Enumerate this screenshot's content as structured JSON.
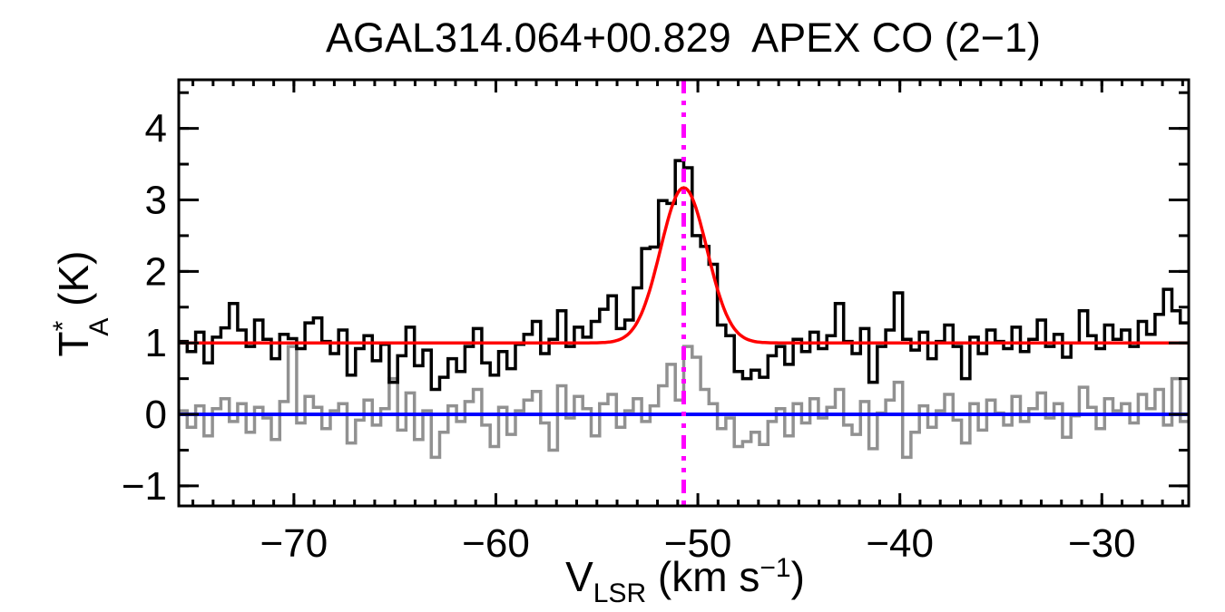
{
  "figure": {
    "background_color": "#ffffff",
    "frame_color": "#000000"
  },
  "chart_data": {
    "type": "line",
    "title": "AGAL314.064+00.829  APEX CO (2−1)",
    "xlabel": {
      "base": "V",
      "sub": "LSR",
      "mid": " (km s",
      "sup": "−1",
      "end": ")"
    },
    "ylabel": {
      "base": "T",
      "sup": "*",
      "sub": "A",
      "end": " (K)"
    },
    "xlim": [
      -75.7,
      -25.7
    ],
    "ylim": [
      -1.28,
      4.68
    ],
    "grid": "off",
    "legend": "none",
    "x_ticks": {
      "major": [
        -70,
        -60,
        -50,
        -40,
        -30
      ],
      "labels": [
        "−70",
        "−60",
        "−50",
        "−40",
        "−30"
      ],
      "minor_step": 1
    },
    "y_ticks": {
      "major": [
        -1,
        0,
        1,
        2,
        3,
        4
      ],
      "labels": [
        "−1",
        "0",
        "1",
        "2",
        "3",
        "4"
      ],
      "minor_step": 0.5
    },
    "colors": {
      "spectrum": "#000000",
      "residual": "#919191",
      "fit": "#ff0000",
      "zero_line": "#0000ff",
      "velocity_marker": "#ff00ff"
    },
    "series": [
      {
        "name": "co21-spectrum-histogram",
        "type": "histogram",
        "color_key": "spectrum",
        "x_start": -75.7,
        "dx": 0.41667,
        "values": [
          1.02,
          0.88,
          1.15,
          0.72,
          1.08,
          1.21,
          1.55,
          1.18,
          0.95,
          1.32,
          1.05,
          0.78,
          1.12,
          1.06,
          0.92,
          1.28,
          1.35,
          1.02,
          0.85,
          1.18,
          0.55,
          0.92,
          1.1,
          0.75,
          0.98,
          0.45,
          0.82,
          1.22,
          0.68,
          0.9,
          0.35,
          0.52,
          0.78,
          0.6,
          0.95,
          1.2,
          0.72,
          0.55,
          0.88,
          0.64,
          0.98,
          1.12,
          1.3,
          0.85,
          1.05,
          1.45,
          0.95,
          1.22,
          1.08,
          1.3,
          1.47,
          1.66,
          1.2,
          1.32,
          1.77,
          2.32,
          2.34,
          2.99,
          2.95,
          3.55,
          3.45,
          2.5,
          2.35,
          2.1,
          1.25,
          1.1,
          0.6,
          0.5,
          0.62,
          0.52,
          0.82,
          0.95,
          0.7,
          1.05,
          0.88,
          1.15,
          0.92,
          1.1,
          1.55,
          1.02,
          0.85,
          1.2,
          0.45,
          0.95,
          1.18,
          1.7,
          1.05,
          0.9,
          1.15,
          0.78,
          1.02,
          1.25,
          0.95,
          0.5,
          1.08,
          0.85,
          1.18,
          1.02,
          0.92,
          1.22,
          0.88,
          1.05,
          1.32,
          0.95,
          1.12,
          0.8,
          1.0,
          1.45,
          1.1,
          0.92,
          1.25,
          1.05,
          1.18,
          0.95,
          1.3,
          1.12,
          1.4,
          1.75,
          1.45,
          1.28
        ]
      },
      {
        "name": "fit-residual-histogram",
        "type": "histogram",
        "color_key": "residual",
        "x_start": -75.7,
        "dx": 0.41667,
        "values": [
          0.05,
          -0.18,
          0.12,
          -0.3,
          0.08,
          0.22,
          -0.1,
          0.15,
          -0.25,
          0.1,
          -0.05,
          -0.35,
          0.18,
          0.95,
          -0.12,
          0.25,
          0.1,
          -0.2,
          0.05,
          0.15,
          -0.4,
          -0.08,
          0.2,
          -0.15,
          0.08,
          0.5,
          -0.22,
          0.3,
          -0.35,
          0.05,
          -0.6,
          -0.25,
          0.12,
          -0.1,
          0.18,
          0.35,
          -0.15,
          -0.45,
          0.1,
          -0.28,
          0.05,
          0.2,
          0.32,
          -0.12,
          -0.5,
          0.4,
          -0.05,
          0.25,
          0.08,
          -0.3,
          0.15,
          0.28,
          -0.18,
          0.05,
          0.22,
          -0.1,
          0.12,
          0.4,
          0.7,
          0.2,
          0.95,
          0.8,
          0.35,
          0.15,
          -0.2,
          -0.05,
          -0.45,
          -0.38,
          -0.25,
          -0.42,
          -0.1,
          0.08,
          -0.3,
          0.15,
          -0.12,
          0.22,
          -0.05,
          0.1,
          0.35,
          -0.15,
          -0.28,
          0.18,
          -0.48,
          0.02,
          0.2,
          0.45,
          -0.6,
          -0.25,
          0.12,
          -0.18,
          0.05,
          0.28,
          -0.08,
          -0.4,
          0.15,
          -0.22,
          0.2,
          0.02,
          -0.15,
          0.25,
          -0.1,
          0.08,
          0.3,
          -0.05,
          0.15,
          -0.32,
          -0.02,
          0.38,
          0.1,
          -0.2,
          0.22,
          0.05,
          0.15,
          -0.12,
          0.28,
          0.08,
          0.35,
          -0.15,
          0.5,
          -0.1
        ]
      },
      {
        "name": "gaussian-fit-curve",
        "type": "gaussian",
        "color_key": "fit",
        "baseline": 1.0,
        "amplitude": 2.17,
        "center": -50.7,
        "fwhm": 2.7,
        "peak": 3.17
      },
      {
        "name": "zero-baseline",
        "type": "hline",
        "color_key": "zero_line",
        "y": 0
      },
      {
        "name": "systemic-velocity-marker",
        "type": "vline",
        "color_key": "velocity_marker",
        "x": -50.7,
        "style": "dash-dot-dot"
      }
    ]
  }
}
